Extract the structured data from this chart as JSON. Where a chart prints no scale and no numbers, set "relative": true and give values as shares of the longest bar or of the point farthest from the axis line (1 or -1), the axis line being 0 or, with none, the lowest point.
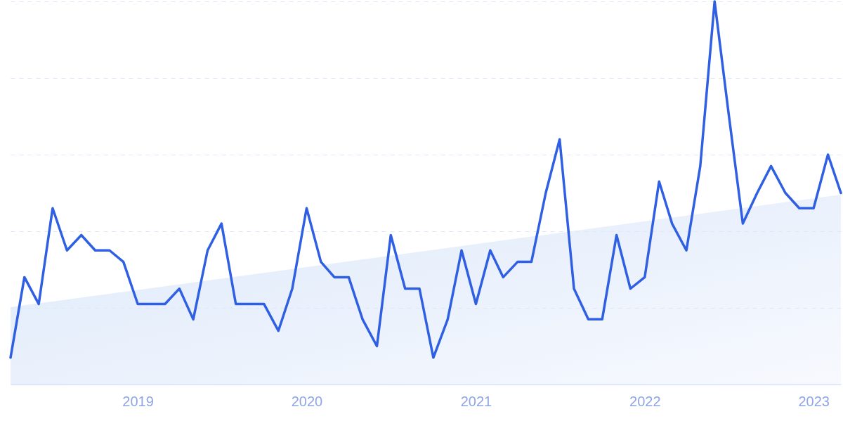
{
  "chart_data": {
    "type": "line",
    "relative": true,
    "grid": "y",
    "line_style": "solid",
    "xlim": [
      "2018-04",
      "2023-03"
    ],
    "xticks": [
      "2019",
      "2020",
      "2021",
      "2022",
      "2023"
    ],
    "series": [
      {
        "color": "#2f5fe3",
        "x": [
          "2018-04",
          "2018-05",
          "2018-06",
          "2018-07",
          "2018-08",
          "2018-09",
          "2018-10",
          "2018-11",
          "2018-12",
          "2019-01",
          "2019-02",
          "2019-03",
          "2019-04",
          "2019-05",
          "2019-06",
          "2019-07",
          "2019-08",
          "2019-09",
          "2019-10",
          "2019-11",
          "2019-12",
          "2020-01",
          "2020-02",
          "2020-03",
          "2020-04",
          "2020-05",
          "2020-06",
          "2020-07",
          "2020-08",
          "2020-09",
          "2020-10",
          "2020-11",
          "2020-12",
          "2021-01",
          "2021-02",
          "2021-03",
          "2021-04",
          "2021-05",
          "2021-06",
          "2021-07",
          "2021-08",
          "2021-09",
          "2021-10",
          "2021-11",
          "2021-12",
          "2022-01",
          "2022-02",
          "2022-03",
          "2022-04",
          "2022-05",
          "2022-06",
          "2022-07",
          "2022-08",
          "2022-09",
          "2022-10",
          "2022-11",
          "2022-12",
          "2023-01",
          "2023-02",
          "2023-03"
        ],
        "values": [
          0.07,
          0.28,
          0.21,
          0.46,
          0.35,
          0.39,
          0.35,
          0.35,
          0.32,
          0.21,
          0.21,
          0.21,
          0.25,
          0.17,
          0.35,
          0.42,
          0.21,
          0.21,
          0.21,
          0.14,
          0.25,
          0.46,
          0.32,
          0.28,
          0.28,
          0.17,
          0.1,
          0.39,
          0.25,
          0.25,
          0.07,
          0.17,
          0.35,
          0.21,
          0.35,
          0.28,
          0.32,
          0.32,
          0.5,
          0.64,
          0.25,
          0.17,
          0.17,
          0.39,
          0.25,
          0.28,
          0.53,
          0.42,
          0.35,
          0.57,
          1,
          0.71,
          0.42,
          0.5,
          0.57,
          0.5,
          0.46,
          0.46,
          0.6,
          0.5
        ]
      }
    ]
  }
}
